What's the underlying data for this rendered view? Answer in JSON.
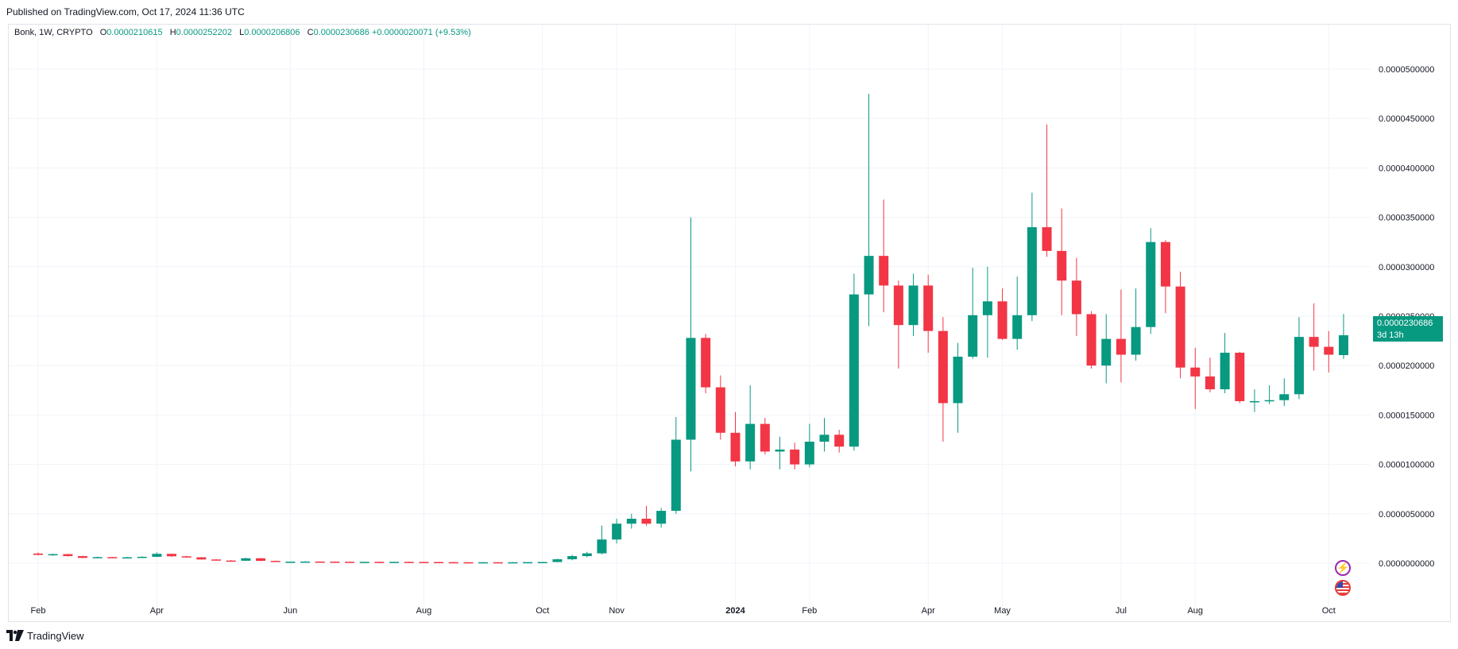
{
  "header": {
    "published": "Published on TradingView.com, Oct 17, 2024 11:36 UTC"
  },
  "legend": {
    "symbol": "Bonk, 1W, CRYPTO",
    "open_label": "O",
    "open": "0.0000210615",
    "high_label": "H",
    "high": "0.0000252202",
    "low_label": "L",
    "low": "0.0000206806",
    "close_label": "C",
    "close": "0.0000230686",
    "change": "+0.0000020071 (+9.53%)"
  },
  "price_badge": {
    "price": "0.0000230686",
    "countdown": "3d 13h"
  },
  "footer": {
    "brand": "TradingView"
  },
  "colors": {
    "up": "#089981",
    "down": "#f23645",
    "grid": "#f0f3fa",
    "accent": "#089981"
  },
  "icons": [
    "bolt-icon",
    "us-flag-icon",
    "tradingview-logo-icon"
  ],
  "chart_data": {
    "type": "candlestick",
    "ylim": [
      -4.5e-06,
      5.45e-05
    ],
    "y_ticks": [
      "0.0000000000",
      "0.0000050000",
      "0.0000100000",
      "0.0000150000",
      "0.0000200000",
      "0.0000250000",
      "0.0000300000",
      "0.0000350000",
      "0.0000400000",
      "0.0000450000",
      "0.0000500000"
    ],
    "y_tick_values": [
      0,
      5e-06,
      1e-05,
      1.5e-05,
      2e-05,
      2.5e-05,
      3e-05,
      3.5e-05,
      4e-05,
      4.5e-05,
      5e-05
    ],
    "x_ticks": [
      {
        "label": "Feb",
        "index": 0
      },
      {
        "label": "Apr",
        "index": 8
      },
      {
        "label": "Jun",
        "index": 17
      },
      {
        "label": "Aug",
        "index": 26
      },
      {
        "label": "Oct",
        "index": 34
      },
      {
        "label": "Nov",
        "index": 39
      },
      {
        "label": "2024",
        "index": 47,
        "bold": true
      },
      {
        "label": "Feb",
        "index": 52
      },
      {
        "label": "Apr",
        "index": 60
      },
      {
        "label": "May",
        "index": 65
      },
      {
        "label": "Jul",
        "index": 73
      },
      {
        "label": "Aug",
        "index": 78
      },
      {
        "label": "Oct",
        "index": 87
      }
    ],
    "candles": [
      [
        9.8e-07,
        1.1e-06,
        8.2e-07,
        8.4e-07
      ],
      [
        8.4e-07,
        9.6e-07,
        7.5e-07,
        9.2e-07
      ],
      [
        9.2e-07,
        9.5e-07,
        6.8e-07,
        7.2e-07
      ],
      [
        7.2e-07,
        7.6e-07,
        5e-07,
        5.4e-07
      ],
      [
        5.4e-07,
        6.6e-07,
        5e-07,
        6.2e-07
      ],
      [
        6.2e-07,
        6.4e-07,
        5.2e-07,
        5.6e-07
      ],
      [
        5.6e-07,
        6.5e-07,
        5e-07,
        6e-07
      ],
      [
        6e-07,
        7e-07,
        5.5e-07,
        6.5e-07
      ],
      [
        6.5e-07,
        1.1e-06,
        6.2e-07,
        9.5e-07
      ],
      [
        9.5e-07,
        9.8e-07,
        6.5e-07,
        7e-07
      ],
      [
        7e-07,
        7.5e-07,
        5.5e-07,
        6e-07
      ],
      [
        6e-07,
        6.2e-07,
        3.6e-07,
        3.8e-07
      ],
      [
        3.8e-07,
        4.1e-07,
        2.5e-07,
        2.7e-07
      ],
      [
        2.7e-07,
        3.2e-07,
        2.2e-07,
        2.5e-07
      ],
      [
        2.5e-07,
        5.5e-07,
        2.3e-07,
        5e-07
      ],
      [
        5e-07,
        5.3e-07,
        2e-07,
        2.4e-07
      ],
      [
        2.4e-07,
        2.7e-07,
        1.3e-07,
        1.5e-07
      ],
      [
        1.5e-07,
        1.8e-07,
        1.2e-07,
        1.6e-07
      ],
      [
        1.6e-07,
        2e-07,
        1.3e-07,
        1.7e-07
      ],
      [
        1.7e-07,
        1.9e-07,
        1.4e-07,
        1.6e-07
      ],
      [
        1.6e-07,
        1.8e-07,
        1.2e-07,
        1.5e-07
      ],
      [
        1.5e-07,
        1.7e-07,
        1.1e-07,
        1.3e-07
      ],
      [
        1.3e-07,
        1.5e-07,
        1e-07,
        1.4e-07
      ],
      [
        1.4e-07,
        1.6e-07,
        1.1e-07,
        1.2e-07
      ],
      [
        1.2e-07,
        1.5e-07,
        1e-07,
        1.4e-07
      ],
      [
        1.4e-07,
        1.6e-07,
        1.1e-07,
        1.3e-07
      ],
      [
        1.3e-07,
        1.4e-07,
        1e-07,
        1.2e-07
      ],
      [
        1.2e-07,
        1.3e-07,
        9e-08,
        1.1e-07
      ],
      [
        1.1e-07,
        1.3e-07,
        9e-08,
        1e-07
      ],
      [
        1e-07,
        1.2e-07,
        8e-08,
        9e-08
      ],
      [
        9e-08,
        1.1e-07,
        8e-08,
        1e-07
      ],
      [
        1e-07,
        1.1e-07,
        8e-08,
        9e-08
      ],
      [
        9e-08,
        1.1e-07,
        8e-08,
        1e-07
      ],
      [
        1e-07,
        1.2e-07,
        8e-08,
        1.1e-07
      ],
      [
        1.1e-07,
        1.3e-07,
        9e-08,
        1.2e-07
      ],
      [
        1.2e-07,
        4.5e-07,
        1e-07,
        4e-07
      ],
      [
        4e-07,
        8.5e-07,
        3e-07,
        7.2e-07
      ],
      [
        7.2e-07,
        1.15e-06,
        6e-07,
        1e-06
      ],
      [
        1e-06,
        3.8e-06,
        9e-07,
        2.4e-06
      ],
      [
        2.4e-06,
        4.5e-06,
        2e-06,
        4e-06
      ],
      [
        4e-06,
        5e-06,
        3.5e-06,
        4.5e-06
      ],
      [
        4.5e-06,
        5.8e-06,
        3.8e-06,
        4e-06
      ],
      [
        4e-06,
        5.6e-06,
        3.6e-06,
        5.3e-06
      ],
      [
        5.3e-06,
        1.48e-05,
        5e-06,
        1.25e-05
      ],
      [
        1.25e-05,
        3.5e-05,
        9.3e-06,
        2.28e-05
      ],
      [
        2.28e-05,
        2.32e-05,
        1.72e-05,
        1.78e-05
      ],
      [
        1.78e-05,
        1.9e-05,
        1.25e-05,
        1.32e-05
      ],
      [
        1.32e-05,
        1.53e-05,
        9.8e-06,
        1.03e-05
      ],
      [
        1.03e-05,
        1.8e-05,
        9.5e-06,
        1.41e-05
      ],
      [
        1.41e-05,
        1.47e-05,
        1.1e-05,
        1.13e-05
      ],
      [
        1.13e-05,
        1.28e-05,
        9.5e-06,
        1.15e-05
      ],
      [
        1.15e-05,
        1.22e-05,
        9.5e-06,
        1e-05
      ],
      [
        1e-05,
        1.41e-05,
        9.7e-06,
        1.23e-05
      ],
      [
        1.23e-05,
        1.47e-05,
        1.13e-05,
        1.3e-05
      ],
      [
        1.3e-05,
        1.35e-05,
        1.12e-05,
        1.18e-05
      ],
      [
        1.18e-05,
        2.93e-05,
        1.14e-05,
        2.72e-05
      ],
      [
        2.72e-05,
        4.75e-05,
        2.4e-05,
        3.11e-05
      ],
      [
        3.11e-05,
        3.68e-05,
        2.54e-05,
        2.81e-05
      ],
      [
        2.81e-05,
        2.86e-05,
        1.97e-05,
        2.41e-05
      ],
      [
        2.41e-05,
        2.93e-05,
        2.3e-05,
        2.81e-05
      ],
      [
        2.81e-05,
        2.92e-05,
        2.13e-05,
        2.35e-05
      ],
      [
        2.35e-05,
        2.49e-05,
        1.23e-05,
        1.62e-05
      ],
      [
        1.62e-05,
        2.23e-05,
        1.32e-05,
        2.09e-05
      ],
      [
        2.09e-05,
        2.99e-05,
        2.07e-05,
        2.51e-05
      ],
      [
        2.51e-05,
        3e-05,
        2.08e-05,
        2.65e-05
      ],
      [
        2.65e-05,
        2.78e-05,
        2.26e-05,
        2.27e-05
      ],
      [
        2.27e-05,
        2.9e-05,
        2.16e-05,
        2.51e-05
      ],
      [
        2.51e-05,
        3.75e-05,
        2.45e-05,
        3.4e-05
      ],
      [
        3.4e-05,
        4.44e-05,
        3.1e-05,
        3.16e-05
      ],
      [
        3.16e-05,
        3.59e-05,
        2.51e-05,
        2.86e-05
      ],
      [
        2.86e-05,
        3.09e-05,
        2.3e-05,
        2.52e-05
      ],
      [
        2.52e-05,
        2.55e-05,
        1.97e-05,
        2e-05
      ],
      [
        2e-05,
        2.52e-05,
        1.82e-05,
        2.27e-05
      ],
      [
        2.27e-05,
        2.77e-05,
        1.83e-05,
        2.11e-05
      ],
      [
        2.11e-05,
        2.78e-05,
        2.05e-05,
        2.39e-05
      ],
      [
        2.39e-05,
        3.39e-05,
        2.32e-05,
        3.25e-05
      ],
      [
        3.25e-05,
        3.27e-05,
        2.53e-05,
        2.8e-05
      ],
      [
        2.8e-05,
        2.95e-05,
        1.87e-05,
        1.98e-05
      ],
      [
        1.98e-05,
        2.18e-05,
        1.56e-05,
        1.89e-05
      ],
      [
        1.89e-05,
        2.08e-05,
        1.73e-05,
        1.76e-05
      ],
      [
        1.76e-05,
        2.33e-05,
        1.72e-05,
        2.13e-05
      ],
      [
        2.13e-05,
        2.14e-05,
        1.62e-05,
        1.64e-05
      ],
      [
        1.64e-05,
        1.76e-05,
        1.53e-05,
        1.64e-05
      ],
      [
        1.64e-05,
        1.8e-05,
        1.61e-05,
        1.65e-05
      ],
      [
        1.65e-05,
        1.87e-05,
        1.59e-05,
        1.71e-05
      ],
      [
        1.71e-05,
        2.49e-05,
        1.66e-05,
        2.29e-05
      ],
      [
        2.29e-05,
        2.63e-05,
        1.95e-05,
        2.19e-05
      ],
      [
        2.19e-05,
        2.35e-05,
        1.93e-05,
        2.11e-05
      ],
      [
        2.10615e-05,
        2.52202e-05,
        2.06806e-05,
        2.30686e-05
      ]
    ]
  }
}
